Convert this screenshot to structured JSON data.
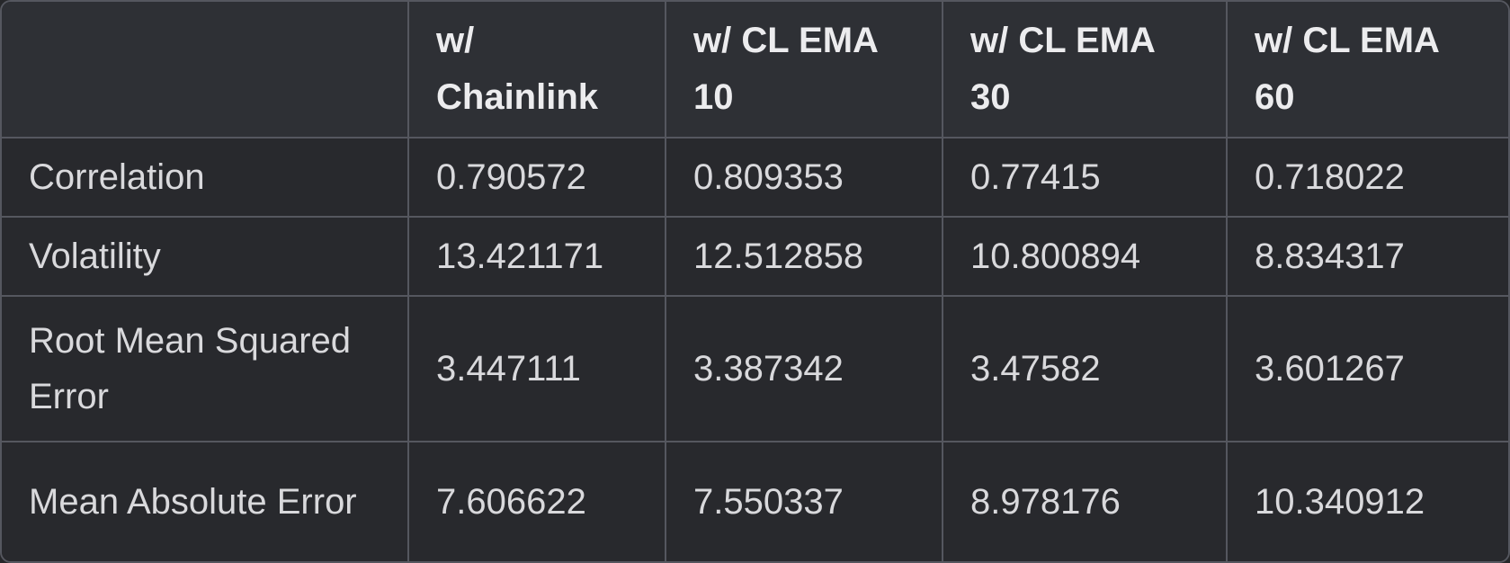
{
  "colors": {
    "header_bg": "#2e3035",
    "row_bg": "#28292d",
    "border": "#55575f",
    "header_text": "#ececee",
    "cell_text": "#d9d9dc",
    "page_bg": "#26272a"
  },
  "table": {
    "corner_label": "",
    "header": [
      "w/\nChainlink",
      "w/ CL EMA\n10",
      "w/ CL EMA\n30",
      "w/ CL EMA\n60"
    ],
    "rows": [
      {
        "label": "Correlation",
        "values": [
          "0.790572",
          "0.809353",
          "0.77415",
          "0.718022"
        ]
      },
      {
        "label": "Volatility",
        "values": [
          "13.421171",
          "12.512858",
          "10.800894",
          "8.834317"
        ]
      },
      {
        "label": "Root Mean Squared\nError",
        "values": [
          "3.447111",
          "3.387342",
          "3.47582",
          "3.601267"
        ]
      },
      {
        "label": "Mean Absolute Error",
        "values": [
          "7.606622",
          "7.550337",
          "8.978176",
          "10.340912"
        ]
      }
    ]
  },
  "chart_data": {
    "type": "table",
    "columns": [
      "",
      "w/ Chainlink",
      "w/ CL EMA 10",
      "w/ CL EMA 30",
      "w/ CL EMA 60"
    ],
    "rows": [
      {
        "metric": "Correlation",
        "values": [
          0.790572,
          0.809353,
          0.77415,
          0.718022
        ]
      },
      {
        "metric": "Volatility",
        "values": [
          13.421171,
          12.512858,
          10.800894,
          8.834317
        ]
      },
      {
        "metric": "Root Mean Squared Error",
        "values": [
          3.447111,
          3.387342,
          3.47582,
          3.601267
        ]
      },
      {
        "metric": "Mean Absolute Error",
        "values": [
          7.606622,
          7.550337,
          8.978176,
          10.340912
        ]
      }
    ],
    "title": "",
    "legend": "none",
    "grid": "on"
  }
}
